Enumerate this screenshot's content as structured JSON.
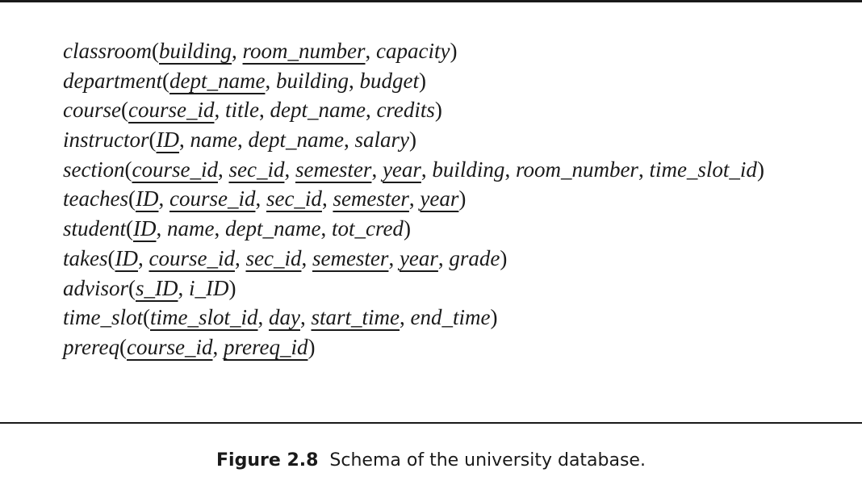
{
  "schema": [
    {
      "relation": "classroom",
      "attributes": [
        {
          "name": "building",
          "key": true
        },
        {
          "name": "room_number",
          "key": true
        },
        {
          "name": "capacity",
          "key": false
        }
      ]
    },
    {
      "relation": "department",
      "attributes": [
        {
          "name": "dept_name",
          "key": true
        },
        {
          "name": "building",
          "key": false
        },
        {
          "name": "budget",
          "key": false
        }
      ]
    },
    {
      "relation": "course",
      "attributes": [
        {
          "name": "course_id",
          "key": true
        },
        {
          "name": "title",
          "key": false
        },
        {
          "name": "dept_name",
          "key": false
        },
        {
          "name": "credits",
          "key": false
        }
      ]
    },
    {
      "relation": "instructor",
      "attributes": [
        {
          "name": "ID",
          "key": true
        },
        {
          "name": "name",
          "key": false
        },
        {
          "name": "dept_name",
          "key": false
        },
        {
          "name": "salary",
          "key": false
        }
      ]
    },
    {
      "relation": "section",
      "attributes": [
        {
          "name": "course_id",
          "key": true
        },
        {
          "name": "sec_id",
          "key": true
        },
        {
          "name": "semester",
          "key": true
        },
        {
          "name": "year",
          "key": true
        },
        {
          "name": "building",
          "key": false
        },
        {
          "name": "room_number",
          "key": false
        },
        {
          "name": "time_slot_id",
          "key": false
        }
      ]
    },
    {
      "relation": "teaches",
      "attributes": [
        {
          "name": "ID",
          "key": true
        },
        {
          "name": "course_id",
          "key": true
        },
        {
          "name": "sec_id",
          "key": true
        },
        {
          "name": "semester",
          "key": true
        },
        {
          "name": "year",
          "key": true
        }
      ]
    },
    {
      "relation": "student",
      "attributes": [
        {
          "name": "ID",
          "key": true
        },
        {
          "name": "name",
          "key": false
        },
        {
          "name": "dept_name",
          "key": false
        },
        {
          "name": "tot_cred",
          "key": false
        }
      ]
    },
    {
      "relation": "takes",
      "attributes": [
        {
          "name": "ID",
          "key": true
        },
        {
          "name": "course_id",
          "key": true
        },
        {
          "name": "sec_id",
          "key": true
        },
        {
          "name": "semester",
          "key": true
        },
        {
          "name": "year",
          "key": true
        },
        {
          "name": "grade",
          "key": false
        }
      ]
    },
    {
      "relation": "advisor",
      "attributes": [
        {
          "name": "s_ID",
          "key": true
        },
        {
          "name": "i_ID",
          "key": false
        }
      ]
    },
    {
      "relation": "time_slot",
      "attributes": [
        {
          "name": "time_slot_id",
          "key": true
        },
        {
          "name": "day",
          "key": true
        },
        {
          "name": "start_time",
          "key": true
        },
        {
          "name": "end_time",
          "key": false
        }
      ]
    },
    {
      "relation": "prereq",
      "attributes": [
        {
          "name": "course_id",
          "key": true
        },
        {
          "name": "prereq_id",
          "key": true
        }
      ]
    }
  ],
  "caption": {
    "label": "Figure 2.8",
    "text": "Schema of the university database."
  }
}
